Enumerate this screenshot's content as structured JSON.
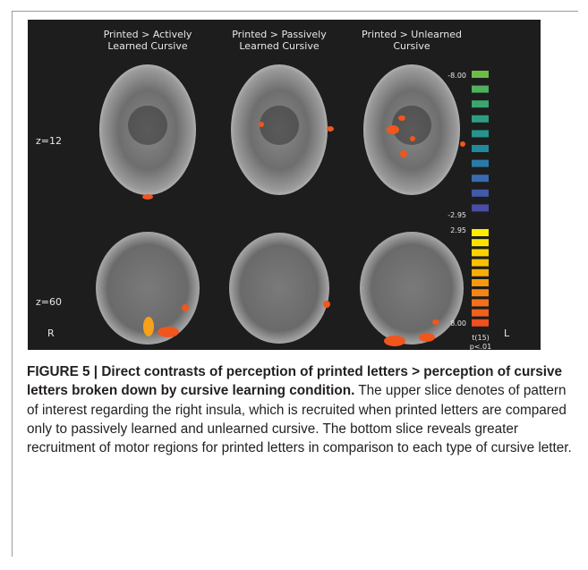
{
  "figure": {
    "column_titles": [
      [
        "Printed > Actively",
        "Learned Cursive"
      ],
      [
        "Printed > Passively",
        "Learned Cursive"
      ],
      [
        "Printed > Unlearned",
        "Cursive"
      ]
    ],
    "row_labels": [
      "z=12",
      "z=60"
    ],
    "side_labels": {
      "left": "R",
      "right": "L"
    },
    "colorbar": {
      "tick_labels": [
        "-8.00",
        "-2.95",
        "2.95",
        "8.00"
      ],
      "stat_label": [
        "t(15)",
        "p<.01"
      ]
    }
  },
  "caption": {
    "label": "FIGURE 5 |",
    "title": "Direct contrasts of perception of printed letters > perception of cursive letters broken down by cursive learning condition.",
    "text": "The upper slice denotes of pattern of interest regarding the right insula, which is recruited when printed letters are compared only to passively learned and unlearned cursive. The bottom slice reveals greater recruitment of motor regions for printed letters in comparison to each type of cursive letter."
  }
}
